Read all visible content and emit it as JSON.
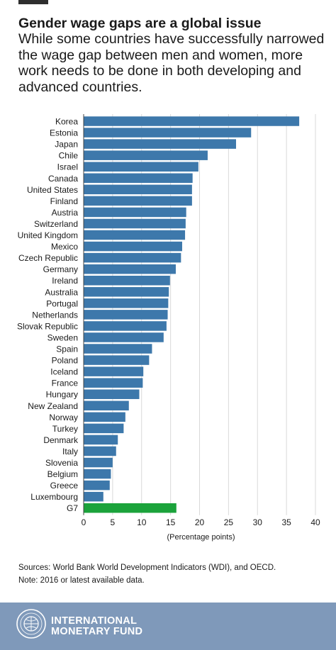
{
  "title": "Gender wage gaps are a global issue",
  "subtitle": "While some countries have successfully narrowed the wage gap between men and women, more work needs to be done in both developing and advanced countries.",
  "sources": {
    "line1": "Sources: World Bank World Development Indicators (WDI), and OECD.",
    "line2": "Note: 2016 or latest available data."
  },
  "footer": {
    "org_line1": "INTERNATIONAL",
    "org_line2": "MONETARY FUND",
    "seal_icon": "imf-seal-icon"
  },
  "colors": {
    "bar": "#3d78ab",
    "highlight": "#1ba33b",
    "footer": "#7f99ba"
  },
  "chart_data": {
    "type": "bar",
    "orientation": "horizontal",
    "categories": [
      "Korea",
      "Estonia",
      "Japan",
      "Chile",
      "Israel",
      "Canada",
      "United States",
      "Finland",
      "Austria",
      "Switzerland",
      "United Kingdom",
      "Mexico",
      "Czech Republic",
      "Germany",
      "Ireland",
      "Australia",
      "Portugal",
      "Netherlands",
      "Slovak Republic",
      "Sweden",
      "Spain",
      "Poland",
      "Iceland",
      "France",
      "Hungary",
      "New Zealand",
      "Norway",
      "Turkey",
      "Denmark",
      "Italy",
      "Slovenia",
      "Belgium",
      "Greece",
      "Luxembourg",
      "G7"
    ],
    "values": [
      37.2,
      28.9,
      26.3,
      21.4,
      19.8,
      18.8,
      18.7,
      18.7,
      17.7,
      17.6,
      17.5,
      17.0,
      16.8,
      15.9,
      14.9,
      14.7,
      14.6,
      14.5,
      14.3,
      13.8,
      11.8,
      11.3,
      10.3,
      10.2,
      9.6,
      7.8,
      7.2,
      6.9,
      5.9,
      5.6,
      5.0,
      4.7,
      4.5,
      3.4,
      16.0
    ],
    "highlight": [
      "G7"
    ],
    "xlim": [
      0,
      40
    ],
    "xticks": [
      0,
      5,
      10,
      15,
      20,
      25,
      30,
      35,
      40
    ],
    "xlabel": "(Percentage points)",
    "ylabel": "",
    "grid": true
  }
}
